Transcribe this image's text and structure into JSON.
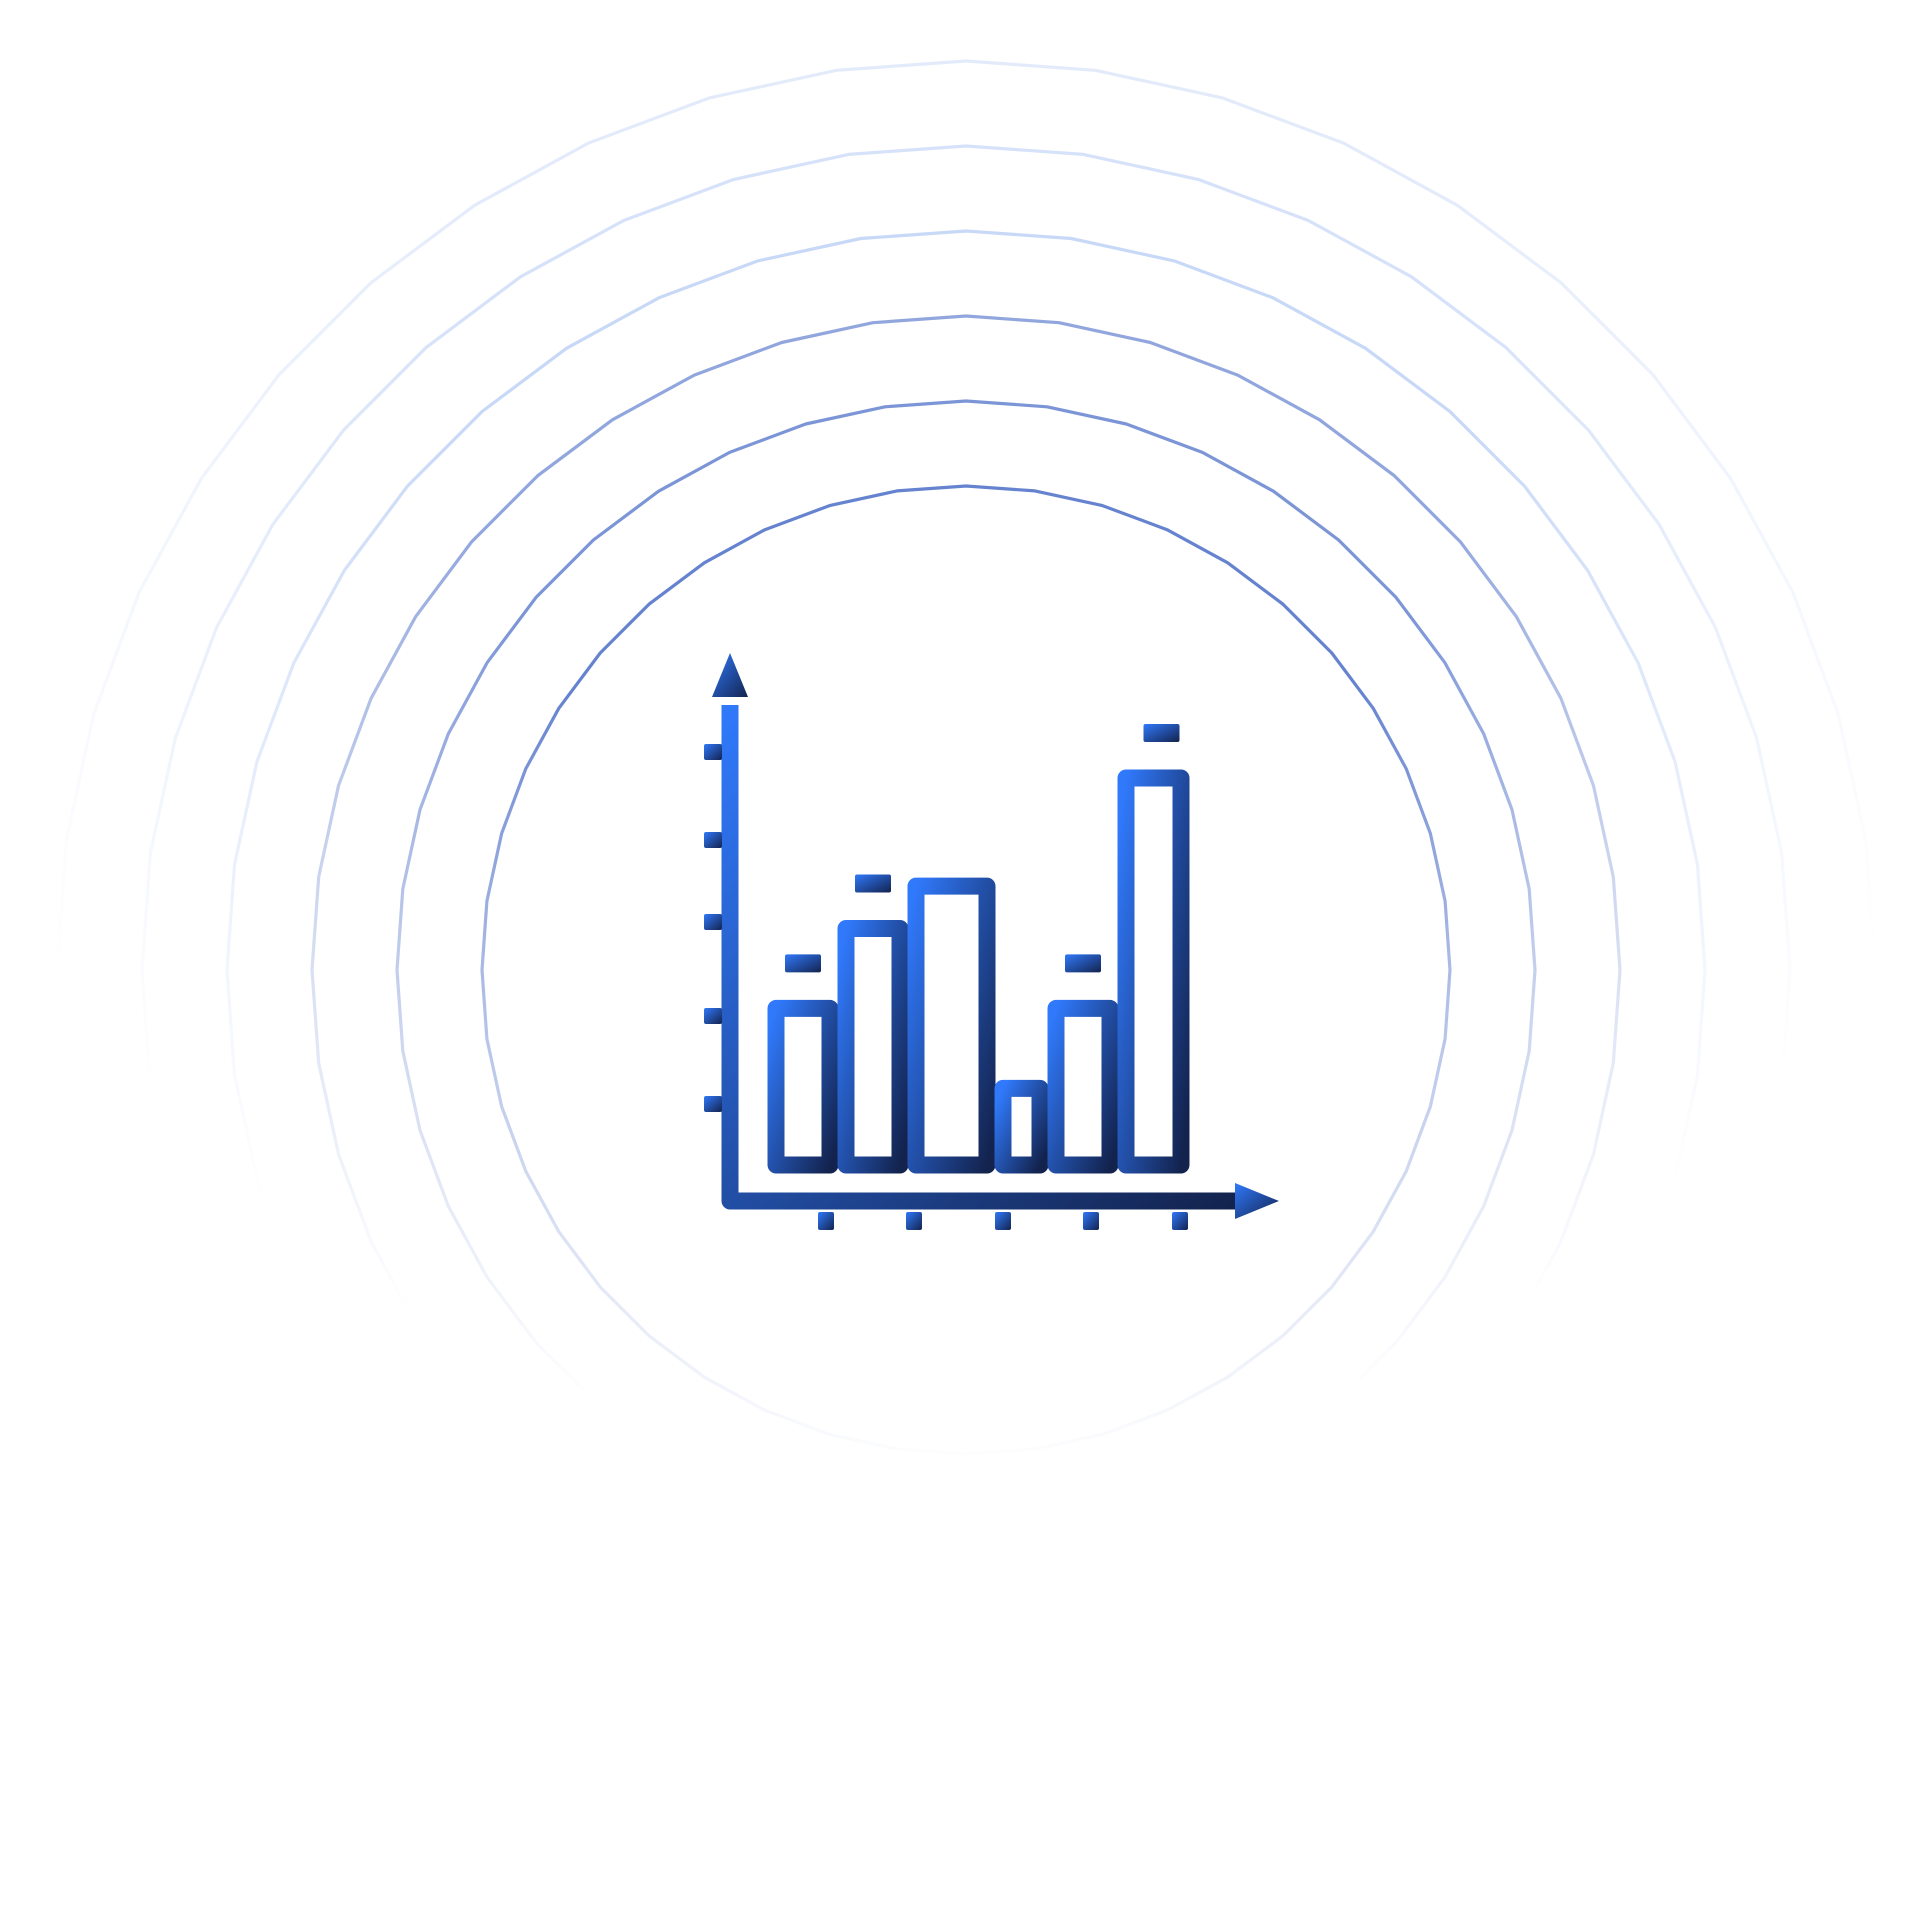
{
  "icon": {
    "name": "bar-chart-icon",
    "bar_values": [
      0.35,
      0.52,
      0.61,
      0.18,
      0.35,
      0.84
    ],
    "gradient_start": "#3079FB",
    "gradient_end": "#13234E"
  },
  "rings": {
    "count": 6,
    "color_light": "#8FB0EE",
    "color_dark": "#4B6DC8"
  }
}
